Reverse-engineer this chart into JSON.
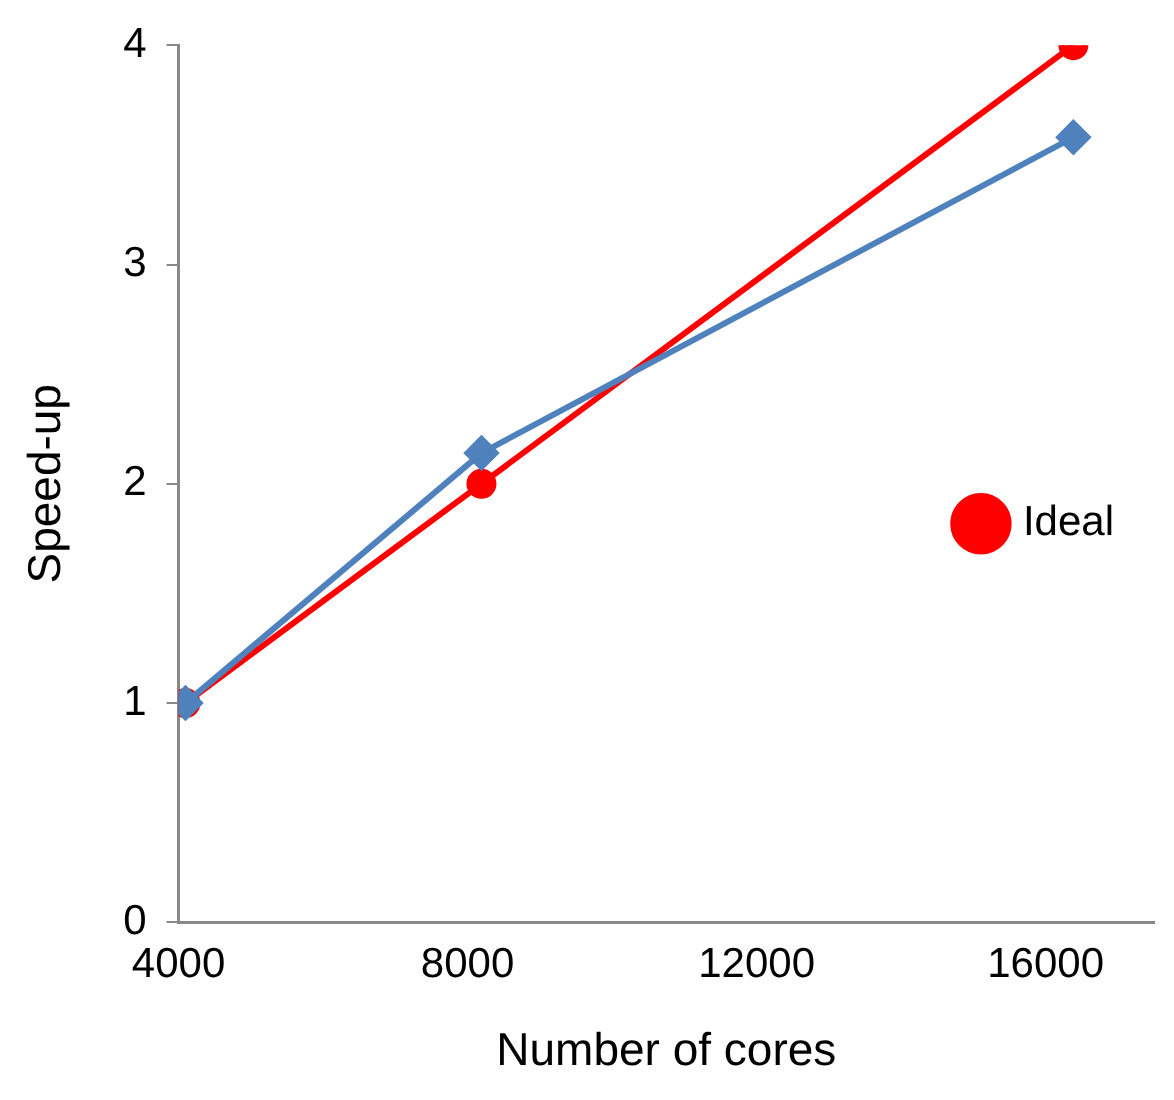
{
  "chart_data": {
    "type": "line",
    "xlabel": "Number of cores",
    "ylabel": "Speed-up",
    "xlim": [
      4000,
      17500
    ],
    "xticks": [
      4000,
      8000,
      12000,
      16000
    ],
    "ylim": [
      0,
      4
    ],
    "yticks": [
      0,
      1,
      2,
      3,
      4
    ],
    "grid": false,
    "legend": "right",
    "line_style": "solid",
    "series": [
      {
        "color": "#4f81bd",
        "marker": "diamond",
        "x": [
          4096,
          8192,
          16384
        ],
        "values": [
          1,
          2.14,
          3.58
        ]
      },
      {
        "name": "Ideal",
        "color": "#ff0000",
        "marker": "circle",
        "x": [
          4096,
          8192,
          16384
        ],
        "values": [
          1,
          2,
          4
        ]
      }
    ]
  }
}
